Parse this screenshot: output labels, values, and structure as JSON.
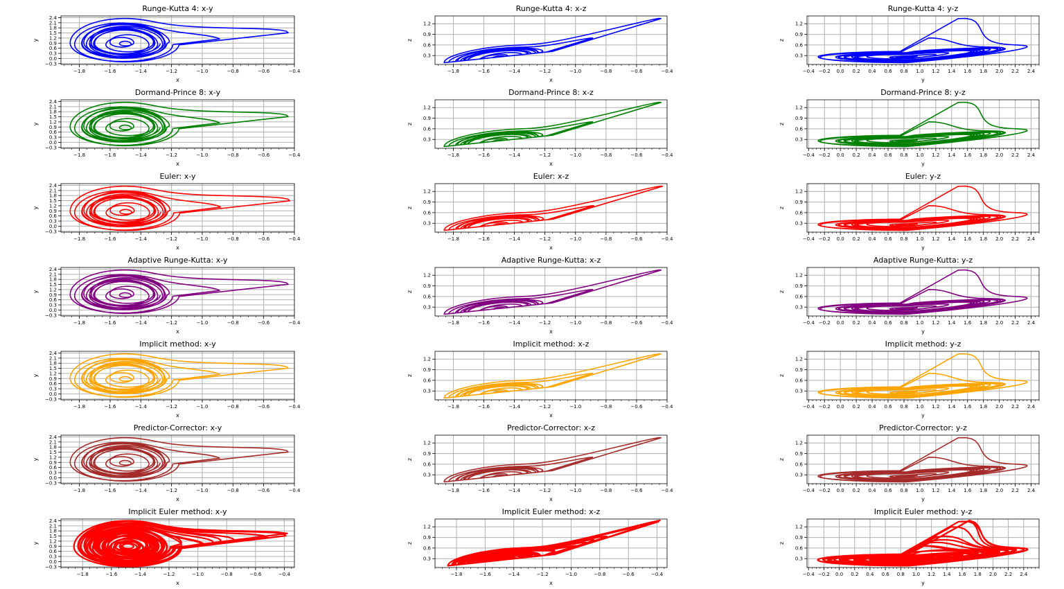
{
  "chart_data": [
    {
      "type": "line",
      "title": "Runge-Kutta 4: x-y",
      "xlabel": "x",
      "ylabel": "y",
      "color": "#0000ff",
      "grid": true,
      "xlim": [
        -1.92,
        -0.4
      ],
      "ylim": [
        -0.35,
        2.5
      ],
      "xticks": [
        "-1.8",
        "-1.6",
        "-1.4",
        "-1.2",
        "-1.0",
        "-0.8",
        "-0.6",
        "-0.4"
      ],
      "yticks": [
        "-0.3",
        "0.0",
        "0.3",
        "0.6",
        "0.9",
        "1.2",
        "1.5",
        "1.8",
        "2.1",
        "2.4"
      ],
      "x_max": -0.44,
      "y_max": 2.35,
      "y_min": -0.2
    },
    {
      "type": "line",
      "title": "Runge-Kutta 4: x-z",
      "xlabel": "x",
      "ylabel": "z",
      "color": "#0000ff",
      "grid": true,
      "xlim": [
        -1.92,
        -0.4
      ],
      "ylim": [
        0.05,
        1.42
      ],
      "xticks": [
        "-1.8",
        "-1.6",
        "-1.4",
        "-1.2",
        "-1.0",
        "-0.8",
        "-0.6",
        "-0.4"
      ],
      "yticks": [
        "0.3",
        "0.6",
        "0.9",
        "1.2"
      ],
      "x_max": -0.44,
      "y_max": 1.35,
      "y_min": 0.1
    },
    {
      "type": "line",
      "title": "Runge-Kutta 4: y-z",
      "xlabel": "y",
      "ylabel": "z",
      "color": "#0000ff",
      "grid": true,
      "xlim": [
        -0.42,
        2.5
      ],
      "ylim": [
        0.05,
        1.42
      ],
      "xticks": [
        "-0.4",
        "-0.2",
        "0.0",
        "0.2",
        "0.4",
        "0.6",
        "0.8",
        "1.0",
        "1.2",
        "1.4",
        "1.6",
        "1.8",
        "2.0",
        "2.2",
        "2.4"
      ],
      "yticks": [
        "0.3",
        "0.6",
        "0.9",
        "1.2"
      ],
      "x_max": 2.35,
      "y_max": 1.35,
      "y_min": 0.1
    },
    {
      "type": "line",
      "title": "Dormand-Prince 8: x-y",
      "xlabel": "x",
      "ylabel": "y",
      "color": "#008000",
      "grid": true,
      "xlim": [
        -1.92,
        -0.4
      ],
      "ylim": [
        -0.35,
        2.5
      ],
      "xticks": [
        "-1.8",
        "-1.6",
        "-1.4",
        "-1.2",
        "-1.0",
        "-0.8",
        "-0.6",
        "-0.4"
      ],
      "yticks": [
        "-0.3",
        "0.0",
        "0.3",
        "0.6",
        "0.9",
        "1.2",
        "1.5",
        "1.8",
        "2.1",
        "2.4"
      ],
      "x_max": -0.44,
      "y_max": 2.35,
      "y_min": -0.2
    },
    {
      "type": "line",
      "title": "Dormand-Prince 8: x-z",
      "xlabel": "x",
      "ylabel": "z",
      "color": "#008000",
      "grid": true,
      "xlim": [
        -1.92,
        -0.4
      ],
      "ylim": [
        0.05,
        1.42
      ],
      "xticks": [
        "-1.8",
        "-1.6",
        "-1.4",
        "-1.2",
        "-1.0",
        "-0.8",
        "-0.6",
        "-0.4"
      ],
      "yticks": [
        "0.3",
        "0.6",
        "0.9",
        "1.2"
      ],
      "x_max": -0.44,
      "y_max": 1.35,
      "y_min": 0.1
    },
    {
      "type": "line",
      "title": "Dormand-Prince 8: y-z",
      "xlabel": "y",
      "ylabel": "z",
      "color": "#008000",
      "grid": true,
      "xlim": [
        -0.42,
        2.5
      ],
      "ylim": [
        0.05,
        1.42
      ],
      "xticks": [
        "-0.4",
        "-0.2",
        "0.0",
        "0.2",
        "0.4",
        "0.6",
        "0.8",
        "1.0",
        "1.2",
        "1.4",
        "1.6",
        "1.8",
        "2.0",
        "2.2",
        "2.4"
      ],
      "yticks": [
        "0.3",
        "0.6",
        "0.9",
        "1.2"
      ],
      "x_max": 2.35,
      "y_max": 1.35,
      "y_min": 0.1
    },
    {
      "type": "line",
      "title": "Euler: x-y",
      "xlabel": "x",
      "ylabel": "y",
      "color": "#ff0000",
      "grid": true,
      "xlim": [
        -1.92,
        -0.4
      ],
      "ylim": [
        -0.35,
        2.5
      ],
      "xticks": [
        "-1.8",
        "-1.6",
        "-1.4",
        "-1.2",
        "-1.0",
        "-0.8",
        "-0.6",
        "-0.4"
      ],
      "yticks": [
        "-0.3",
        "0.0",
        "0.3",
        "0.6",
        "0.9",
        "1.2",
        "1.5",
        "1.8",
        "2.1",
        "2.4"
      ],
      "x_max": -0.43,
      "y_max": 2.35,
      "y_min": -0.25
    },
    {
      "type": "line",
      "title": "Euler: x-z",
      "xlabel": "x",
      "ylabel": "z",
      "color": "#ff0000",
      "grid": true,
      "xlim": [
        -1.92,
        -0.4
      ],
      "ylim": [
        0.05,
        1.42
      ],
      "xticks": [
        "-1.8",
        "-1.6",
        "-1.4",
        "-1.2",
        "-1.0",
        "-0.8",
        "-0.6",
        "-0.4"
      ],
      "yticks": [
        "0.3",
        "0.6",
        "0.9",
        "1.2"
      ],
      "x_max": -0.43,
      "y_max": 1.35,
      "y_min": 0.1
    },
    {
      "type": "line",
      "title": "Euler: y-z",
      "xlabel": "y",
      "ylabel": "z",
      "color": "#ff0000",
      "grid": true,
      "xlim": [
        -0.42,
        2.5
      ],
      "ylim": [
        0.05,
        1.42
      ],
      "xticks": [
        "-0.4",
        "-0.2",
        "0.0",
        "0.2",
        "0.4",
        "0.6",
        "0.8",
        "1.0",
        "1.2",
        "1.4",
        "1.6",
        "1.8",
        "2.0",
        "2.2",
        "2.4"
      ],
      "yticks": [
        "0.3",
        "0.6",
        "0.9",
        "1.2"
      ],
      "x_max": 2.35,
      "y_max": 1.35,
      "y_min": 0.1
    },
    {
      "type": "line",
      "title": "Adaptive Runge-Kutta: x-y",
      "xlabel": "x",
      "ylabel": "y",
      "color": "#800080",
      "grid": true,
      "xlim": [
        -1.92,
        -0.4
      ],
      "ylim": [
        -0.35,
        2.5
      ],
      "xticks": [
        "-1.8",
        "-1.6",
        "-1.4",
        "-1.2",
        "-1.0",
        "-0.8",
        "-0.6",
        "-0.4"
      ],
      "yticks": [
        "-0.3",
        "0.0",
        "0.3",
        "0.6",
        "0.9",
        "1.2",
        "1.5",
        "1.8",
        "2.1",
        "2.4"
      ],
      "x_max": -0.44,
      "y_max": 2.35,
      "y_min": -0.2
    },
    {
      "type": "line",
      "title": "Adaptive Runge-Kutta: x-z",
      "xlabel": "x",
      "ylabel": "z",
      "color": "#800080",
      "grid": true,
      "xlim": [
        -1.92,
        -0.4
      ],
      "ylim": [
        0.05,
        1.42
      ],
      "xticks": [
        "-1.8",
        "-1.6",
        "-1.4",
        "-1.2",
        "-1.0",
        "-0.8",
        "-0.6",
        "-0.4"
      ],
      "yticks": [
        "0.3",
        "0.6",
        "0.9",
        "1.2"
      ],
      "x_max": -0.44,
      "y_max": 1.35,
      "y_min": 0.1
    },
    {
      "type": "line",
      "title": "Adaptive Runge-Kutta: y-z",
      "xlabel": "y",
      "ylabel": "z",
      "color": "#800080",
      "grid": true,
      "xlim": [
        -0.42,
        2.5
      ],
      "ylim": [
        0.05,
        1.42
      ],
      "xticks": [
        "-0.4",
        "-0.2",
        "0.0",
        "0.2",
        "0.4",
        "0.6",
        "0.8",
        "1.0",
        "1.2",
        "1.4",
        "1.6",
        "1.8",
        "2.0",
        "2.2",
        "2.4"
      ],
      "yticks": [
        "0.3",
        "0.6",
        "0.9",
        "1.2"
      ],
      "x_max": 2.35,
      "y_max": 1.35,
      "y_min": 0.1
    },
    {
      "type": "line",
      "title": "Implicit method: x-y",
      "xlabel": "x",
      "ylabel": "y",
      "color": "#ffa500",
      "grid": true,
      "xlim": [
        -1.92,
        -0.4
      ],
      "ylim": [
        -0.35,
        2.5
      ],
      "xticks": [
        "-1.8",
        "-1.6",
        "-1.4",
        "-1.2",
        "-1.0",
        "-0.8",
        "-0.6",
        "-0.4"
      ],
      "yticks": [
        "-0.3",
        "0.0",
        "0.3",
        "0.6",
        "0.9",
        "1.2",
        "1.5",
        "1.8",
        "2.1",
        "2.4"
      ],
      "x_max": -0.44,
      "y_max": 2.35,
      "y_min": -0.2
    },
    {
      "type": "line",
      "title": "Implicit method: x-z",
      "xlabel": "x",
      "ylabel": "z",
      "color": "#ffa500",
      "grid": true,
      "xlim": [
        -1.92,
        -0.4
      ],
      "ylim": [
        0.05,
        1.42
      ],
      "xticks": [
        "-1.8",
        "-1.6",
        "-1.4",
        "-1.2",
        "-1.0",
        "-0.8",
        "-0.6",
        "-0.4"
      ],
      "yticks": [
        "0.3",
        "0.6",
        "0.9",
        "1.2"
      ],
      "x_max": -0.44,
      "y_max": 1.35,
      "y_min": 0.1
    },
    {
      "type": "line",
      "title": "Implicit method: y-z",
      "xlabel": "y",
      "ylabel": "z",
      "color": "#ffa500",
      "grid": true,
      "xlim": [
        -0.42,
        2.5
      ],
      "ylim": [
        0.05,
        1.42
      ],
      "xticks": [
        "-0.4",
        "-0.2",
        "0.0",
        "0.2",
        "0.4",
        "0.6",
        "0.8",
        "1.0",
        "1.2",
        "1.4",
        "1.6",
        "1.8",
        "2.0",
        "2.2",
        "2.4"
      ],
      "yticks": [
        "0.3",
        "0.6",
        "0.9",
        "1.2"
      ],
      "x_max": 2.35,
      "y_max": 1.35,
      "y_min": 0.1
    },
    {
      "type": "line",
      "title": "Predictor-Corrector: x-y",
      "xlabel": "x",
      "ylabel": "y",
      "color": "#a52a2a",
      "grid": true,
      "xlim": [
        -1.92,
        -0.4
      ],
      "ylim": [
        -0.35,
        2.5
      ],
      "xticks": [
        "-1.8",
        "-1.6",
        "-1.4",
        "-1.2",
        "-1.0",
        "-0.8",
        "-0.6",
        "-0.4"
      ],
      "yticks": [
        "-0.3",
        "0.0",
        "0.3",
        "0.6",
        "0.9",
        "1.2",
        "1.5",
        "1.8",
        "2.1",
        "2.4"
      ],
      "x_max": -0.44,
      "y_max": 2.35,
      "y_min": -0.2
    },
    {
      "type": "line",
      "title": "Predictor-Corrector: x-z",
      "xlabel": "x",
      "ylabel": "z",
      "color": "#a52a2a",
      "grid": true,
      "xlim": [
        -1.92,
        -0.4
      ],
      "ylim": [
        0.05,
        1.42
      ],
      "xticks": [
        "-1.8",
        "-1.6",
        "-1.4",
        "-1.2",
        "-1.0",
        "-0.8",
        "-0.6",
        "-0.4"
      ],
      "yticks": [
        "0.3",
        "0.6",
        "0.9",
        "1.2"
      ],
      "x_max": -0.44,
      "y_max": 1.35,
      "y_min": 0.1
    },
    {
      "type": "line",
      "title": "Predictor-Corrector: y-z",
      "xlabel": "y",
      "ylabel": "z",
      "color": "#a52a2a",
      "grid": true,
      "xlim": [
        -0.42,
        2.5
      ],
      "ylim": [
        0.05,
        1.42
      ],
      "xticks": [
        "-0.4",
        "-0.2",
        "0.0",
        "0.2",
        "0.4",
        "0.6",
        "0.8",
        "1.0",
        "1.2",
        "1.4",
        "1.6",
        "1.8",
        "2.0",
        "2.2",
        "2.4"
      ],
      "yticks": [
        "0.3",
        "0.6",
        "0.9",
        "1.2"
      ],
      "x_max": 2.35,
      "y_max": 1.35,
      "y_min": 0.1
    },
    {
      "type": "line",
      "title": "Implicit Euler method: x-y",
      "xlabel": "x",
      "ylabel": "y",
      "color": "#ff0000",
      "grid": true,
      "filled": true,
      "xlim": [
        -1.95,
        -0.33
      ],
      "ylim": [
        -0.35,
        2.5
      ],
      "xticks": [
        "-1.8",
        "-1.6",
        "-1.4",
        "-1.2",
        "-1.0",
        "-0.8",
        "-0.6",
        "-0.4"
      ],
      "yticks": [
        "-0.3",
        "0.0",
        "0.3",
        "0.6",
        "0.9",
        "1.2",
        "1.5",
        "1.8",
        "2.1",
        "2.4"
      ],
      "x_max": -0.38,
      "y_max": 2.4,
      "y_min": -0.3
    },
    {
      "type": "line",
      "title": "Implicit Euler method: x-z",
      "xlabel": "x",
      "ylabel": "z",
      "color": "#ff0000",
      "grid": true,
      "filled": true,
      "xlim": [
        -1.95,
        -0.33
      ],
      "ylim": [
        0.05,
        1.42
      ],
      "xticks": [
        "-1.8",
        "-1.6",
        "-1.4",
        "-1.2",
        "-1.0",
        "-0.8",
        "-0.6",
        "-0.4"
      ],
      "yticks": [
        "0.3",
        "0.6",
        "0.9",
        "1.2"
      ],
      "x_max": -0.38,
      "y_max": 1.38,
      "y_min": 0.1
    },
    {
      "type": "line",
      "title": "Implicit Euler method: y-z",
      "xlabel": "y",
      "ylabel": "z",
      "color": "#ff0000",
      "grid": true,
      "filled": true,
      "xlim": [
        -0.42,
        2.6
      ],
      "ylim": [
        0.05,
        1.42
      ],
      "xticks": [
        "-0.4",
        "-0.2",
        "0.0",
        "0.2",
        "0.4",
        "0.6",
        "0.8",
        "1.0",
        "1.2",
        "1.4",
        "1.6",
        "1.8",
        "2.0",
        "2.2",
        "2.4"
      ],
      "yticks": [
        "0.3",
        "0.6",
        "0.9",
        "1.2"
      ],
      "x_max": 2.45,
      "y_max": 1.38,
      "y_min": 0.1
    }
  ]
}
